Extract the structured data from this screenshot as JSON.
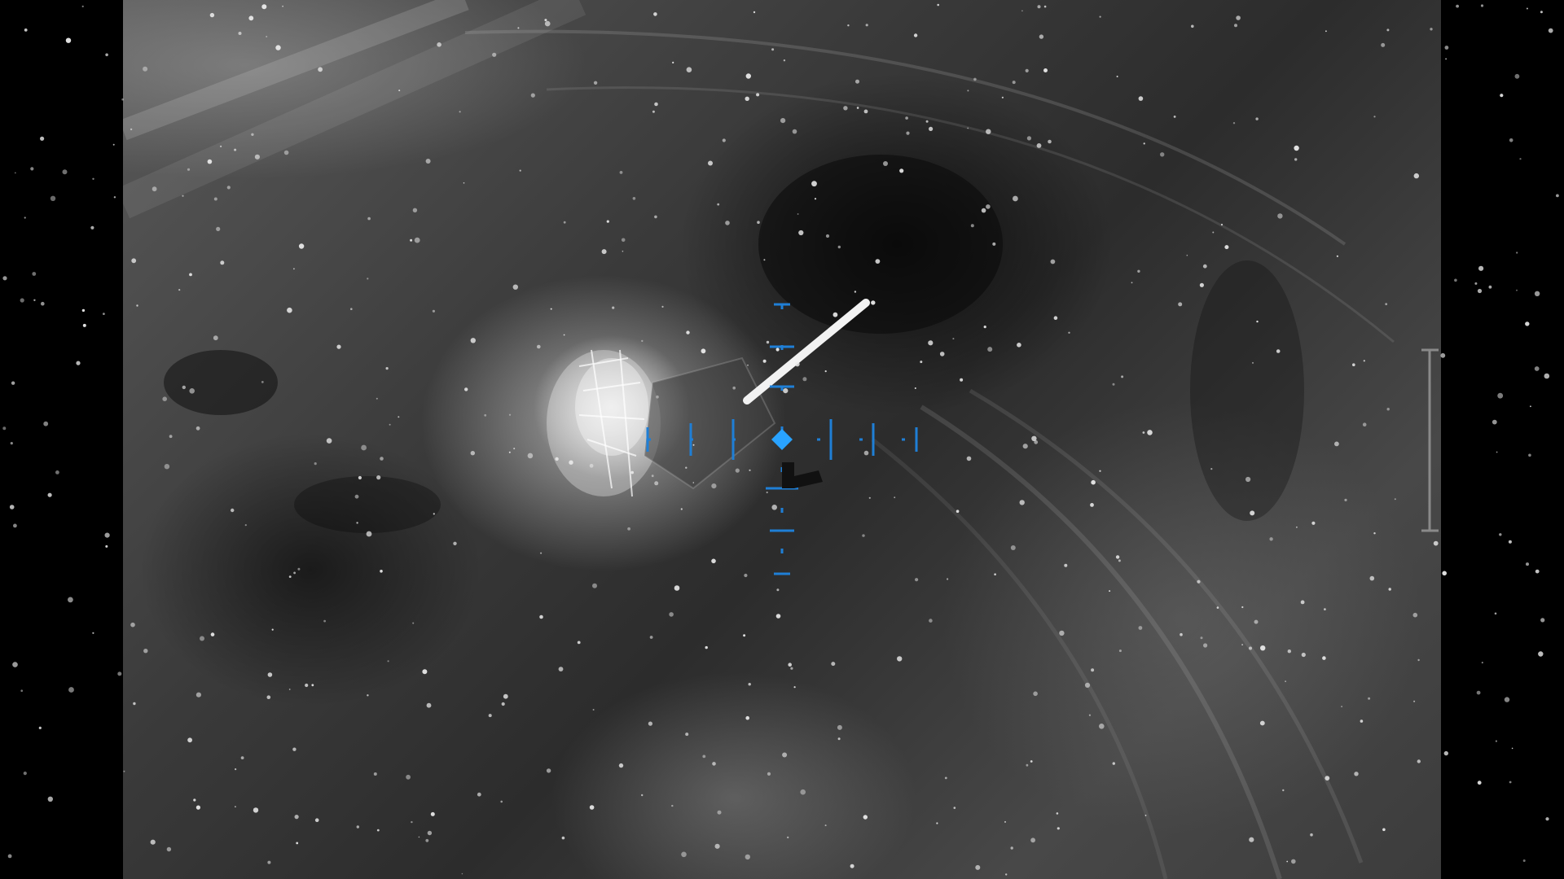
{
  "feed": {
    "mode": "thermal-white-hot",
    "palette": {
      "hud_color": "#1f7fd6",
      "reticle_center_color": "#29a3ff",
      "hot_color": "#f2f2f2",
      "background_color": "#000000"
    }
  },
  "hud": {
    "icons": {
      "reticle": "crosshair-reticle-icon",
      "center": "diamond-center-icon",
      "scale": "vertical-scale-bracket-icon"
    }
  }
}
